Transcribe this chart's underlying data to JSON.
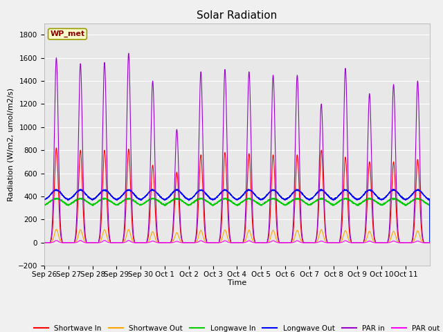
{
  "title": "Solar Radiation",
  "ylabel": "Radiation (W/m2, umol/m2/s)",
  "xlabel": "Time",
  "station_label": "WP_met",
  "ylim": [
    -200,
    1900
  ],
  "yticks": [
    -200,
    0,
    200,
    400,
    600,
    800,
    1000,
    1200,
    1400,
    1600,
    1800
  ],
  "num_days": 16,
  "xtick_labels": [
    "Sep 26",
    "Sep 27",
    "Sep 28",
    "Sep 29",
    "Sep 30",
    "Oct 1",
    "Oct 2",
    "Oct 3",
    "Oct 4",
    "Oct 5",
    "Oct 6",
    "Oct 7",
    "Oct 8",
    "Oct 9",
    "Oct 10",
    "Oct 11"
  ],
  "series": {
    "shortwave_in": {
      "color": "#ff0000",
      "label": "Shortwave In",
      "lw": 0.8
    },
    "shortwave_out": {
      "color": "#ffa500",
      "label": "Shortwave Out",
      "lw": 0.8
    },
    "longwave_in": {
      "color": "#00cc00",
      "label": "Longwave In",
      "lw": 0.8
    },
    "longwave_out": {
      "color": "#0000ff",
      "label": "Longwave Out",
      "lw": 0.8
    },
    "par_in": {
      "color": "#9900cc",
      "label": "PAR in",
      "lw": 0.8
    },
    "par_out": {
      "color": "#ff00ff",
      "label": "PAR out",
      "lw": 0.8
    }
  },
  "sw_in_peaks": [
    820,
    800,
    800,
    810,
    670,
    610,
    760,
    780,
    770,
    760,
    760,
    800,
    740,
    700,
    700,
    720
  ],
  "par_in_peaks": [
    1600,
    1550,
    1560,
    1640,
    1400,
    980,
    1480,
    1500,
    1480,
    1450,
    1450,
    1200,
    1510,
    1290,
    1370,
    1400
  ],
  "par_out_peaks": [
    20,
    20,
    20,
    20,
    15,
    12,
    18,
    18,
    18,
    18,
    18,
    15,
    18,
    15,
    15,
    15
  ],
  "lw_in_base": 310,
  "lw_out_base": 365,
  "fig_bg_color": "#f0f0f0",
  "plot_bg_color": "#e8e8e8",
  "grid_color": "#ffffff",
  "title_fontsize": 11,
  "label_fontsize": 8,
  "tick_fontsize": 7.5
}
